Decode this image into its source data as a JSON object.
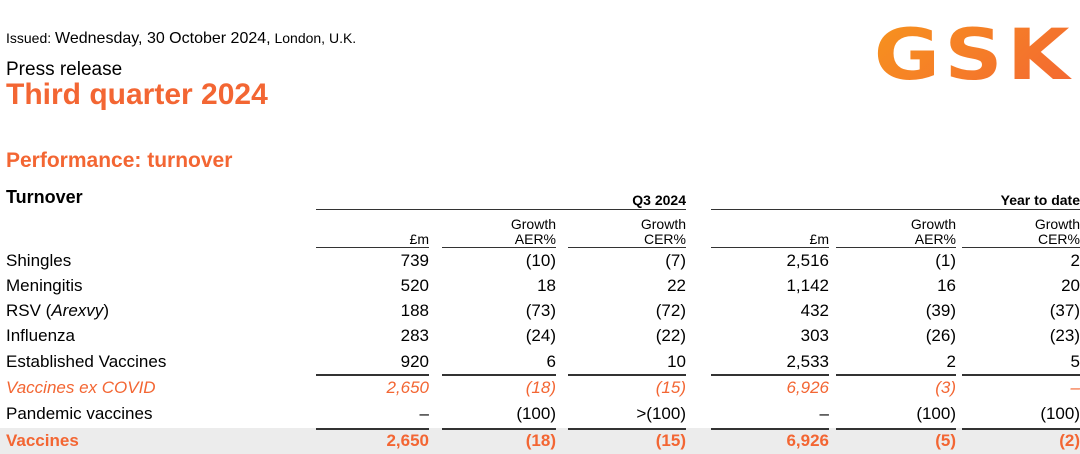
{
  "header": {
    "issued_label": "Issued:",
    "issued_date": "Wednesday, 30 October 2024,",
    "issued_place": "London, U.K.",
    "doc_type": "Press release",
    "title": "Third quarter 2024",
    "logo": "GSK"
  },
  "section_title": "Performance: turnover",
  "table": {
    "row_header": "Turnover",
    "groups": [
      "Q3 2024",
      "Year to date"
    ],
    "columns": [
      [
        "£m",
        ""
      ],
      [
        "Growth",
        "AER%"
      ],
      [
        "Growth",
        "CER%"
      ],
      [
        "£m",
        ""
      ],
      [
        "Growth",
        "AER%"
      ],
      [
        "Growth",
        "CER%"
      ]
    ],
    "rows": [
      {
        "label": "Shingles",
        "values": [
          "739",
          "(10)",
          "(7)",
          "2,516",
          "(1)",
          "2"
        ]
      },
      {
        "label": "Meningitis",
        "values": [
          "520",
          "18",
          "22",
          "1,142",
          "16",
          "20"
        ]
      },
      {
        "label": "RSV (",
        "label_italic": "Arexvy",
        "label_end": ")",
        "values": [
          "188",
          "(73)",
          "(72)",
          "432",
          "(39)",
          "(37)"
        ]
      },
      {
        "label": "Influenza",
        "values": [
          "283",
          "(24)",
          "(22)",
          "303",
          "(26)",
          "(23)"
        ]
      },
      {
        "label": "Established Vaccines",
        "values": [
          "920",
          "6",
          "10",
          "2,533",
          "2",
          "5"
        ]
      },
      {
        "label": "Vaccines ex COVID",
        "values": [
          "2,650",
          "(18)",
          "(15)",
          "6,926",
          "(3)",
          "–"
        ]
      },
      {
        "label": "Pandemic vaccines",
        "values": [
          "–",
          "(100)",
          ">(100)",
          "–",
          "(100)",
          "(100)"
        ]
      },
      {
        "label": "Vaccines",
        "values": [
          "2,650",
          "(18)",
          "(15)",
          "6,926",
          "(5)",
          "(2)"
        ]
      }
    ]
  },
  "colors": {
    "accent": "#f36633"
  }
}
